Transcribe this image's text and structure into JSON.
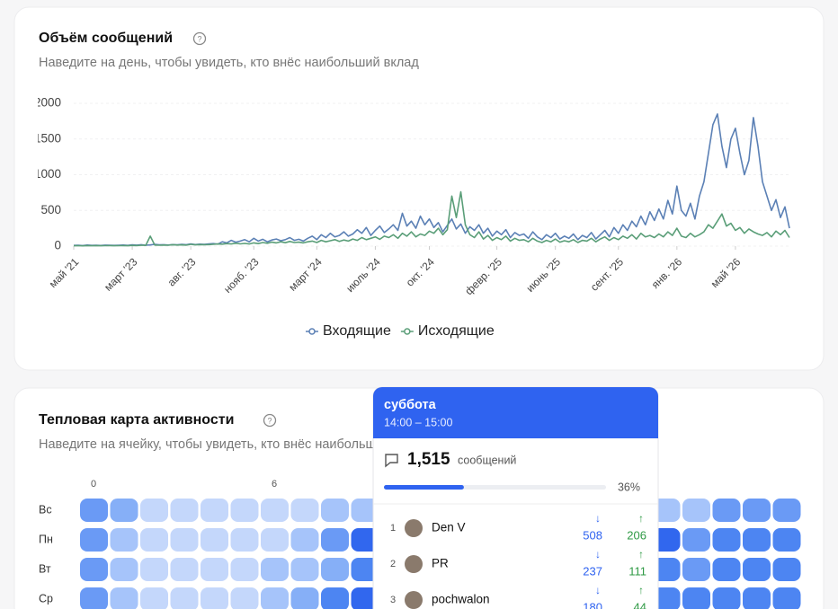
{
  "volume_card": {
    "title": "Объём сообщений",
    "subtitle": "Наведите на день, чтобы увидеть, кто внёс наибольший вклад",
    "chart_data": {
      "type": "line",
      "ylim": [
        0,
        2000
      ],
      "yticks": [
        0,
        500,
        1000,
        1500,
        2000
      ],
      "grid": true,
      "xlim": [
        0,
        159
      ],
      "xticks": [
        {
          "value": 0,
          "label": "май '21"
        },
        {
          "value": 13,
          "label": "март '23"
        },
        {
          "value": 26,
          "label": "авг. '23"
        },
        {
          "value": 40,
          "label": "нояб. '23"
        },
        {
          "value": 54,
          "label": "март '24"
        },
        {
          "value": 67,
          "label": "июль '24"
        },
        {
          "value": 79,
          "label": "окт. '24"
        },
        {
          "value": 94,
          "label": "февр. '25"
        },
        {
          "value": 107,
          "label": "июнь '25"
        },
        {
          "value": 121,
          "label": "сент. '25"
        },
        {
          "value": 134,
          "label": "янв. '26"
        },
        {
          "value": 147,
          "label": "май '26"
        }
      ],
      "series": [
        {
          "name": "Входящие",
          "color": "#5b80b5",
          "values": [
            10,
            12,
            8,
            15,
            10,
            12,
            9,
            14,
            11,
            10,
            12,
            15,
            10,
            18,
            14,
            20,
            12,
            16,
            25,
            18,
            20,
            15,
            22,
            18,
            25,
            20,
            30,
            22,
            28,
            25,
            30,
            35,
            28,
            60,
            45,
            80,
            55,
            70,
            90,
            60,
            110,
            70,
            95,
            60,
            85,
            100,
            75,
            90,
            120,
            80,
            95,
            70,
            110,
            140,
            90,
            160,
            120,
            180,
            130,
            150,
            200,
            140,
            170,
            230,
            180,
            260,
            150,
            220,
            280,
            190,
            240,
            300,
            220,
            460,
            280,
            350,
            250,
            420,
            300,
            380,
            260,
            330,
            200,
            290,
            380,
            240,
            310,
            180,
            270,
            220,
            300,
            180,
            250,
            140,
            210,
            160,
            230,
            120,
            190,
            150,
            170,
            110,
            200,
            130,
            90,
            160,
            120,
            180,
            100,
            140,
            110,
            170,
            90,
            150,
            120,
            190,
            100,
            160,
            220,
            130,
            260,
            180,
            300,
            220,
            350,
            270,
            420,
            300,
            480,
            360,
            520,
            380,
            640,
            450,
            840,
            500,
            420,
            600,
            380,
            700,
            900,
            1300,
            1700,
            1850,
            1400,
            1100,
            1500,
            1650,
            1300,
            1000,
            1200,
            1800,
            1400,
            900,
            700,
            500,
            650,
            400,
            550,
            250
          ]
        },
        {
          "name": "Исходящие",
          "color": "#5a9e78",
          "values": [
            5,
            6,
            4,
            8,
            5,
            7,
            5,
            6,
            8,
            5,
            6,
            8,
            5,
            10,
            8,
            12,
            10,
            140,
            15,
            12,
            15,
            12,
            20,
            15,
            18,
            14,
            25,
            18,
            22,
            20,
            22,
            25,
            30,
            28,
            35,
            30,
            40,
            32,
            38,
            30,
            45,
            35,
            50,
            40,
            55,
            45,
            60,
            48,
            65,
            50,
            55,
            45,
            60,
            70,
            50,
            80,
            60,
            75,
            90,
            65,
            85,
            70,
            100,
            80,
            120,
            90,
            110,
            130,
            95,
            140,
            120,
            160,
            110,
            180,
            140,
            200,
            130,
            170,
            150,
            210,
            180,
            250,
            160,
            230,
            700,
            400,
            760,
            300,
            160,
            120,
            200,
            100,
            150,
            80,
            120,
            90,
            140,
            70,
            110,
            80,
            90,
            60,
            110,
            70,
            50,
            80,
            60,
            100,
            55,
            75,
            60,
            90,
            50,
            80,
            70,
            110,
            60,
            100,
            130,
            80,
            120,
            90,
            140,
            110,
            160,
            100,
            180,
            130,
            150,
            120,
            170,
            130,
            200,
            150,
            250,
            140,
            120,
            180,
            130,
            160,
            200,
            300,
            250,
            350,
            450,
            280,
            320,
            220,
            260,
            180,
            240,
            200,
            170,
            150,
            190,
            130,
            210,
            160,
            220,
            120
          ]
        }
      ]
    }
  },
  "heatmap_card": {
    "title": "Тепловая карта активности",
    "subtitle": "Наведите на ячейку, чтобы увидеть, кто внёс наибольший вклад",
    "chart_data": {
      "type": "heatmap",
      "palette": [
        "#dbe7fd",
        "#c4d7fb",
        "#a6c4fa",
        "#86aff7",
        "#6a9af5",
        "#4d85f2",
        "#3167ee"
      ],
      "column_labels": [
        0,
        6
      ],
      "rows": [
        {
          "name": "Вс",
          "values": [
            4,
            3,
            1,
            1,
            1,
            1,
            1,
            1,
            2,
            2,
            null,
            null,
            null,
            null,
            null,
            null,
            null,
            null,
            null,
            2,
            2,
            4,
            4,
            4
          ]
        },
        {
          "name": "Пн",
          "values": [
            4,
            2,
            1,
            1,
            1,
            1,
            1,
            2,
            4,
            6,
            null,
            null,
            null,
            null,
            null,
            null,
            null,
            null,
            null,
            6,
            4,
            5,
            5,
            5
          ]
        },
        {
          "name": "Вт",
          "values": [
            4,
            2,
            1,
            1,
            1,
            1,
            2,
            2,
            3,
            5,
            null,
            null,
            null,
            null,
            null,
            null,
            null,
            null,
            null,
            5,
            4,
            5,
            5,
            5
          ]
        },
        {
          "name": "Ср",
          "values": [
            4,
            2,
            1,
            1,
            1,
            1,
            2,
            3,
            5,
            6,
            null,
            null,
            null,
            null,
            null,
            null,
            null,
            null,
            null,
            5,
            5,
            5,
            5,
            5
          ]
        }
      ]
    }
  },
  "tooltip": {
    "day": "суббота",
    "time": "14:00 – 15:00",
    "count": 1515,
    "count_label": "1,515",
    "count_unit": "сообщений",
    "share": 36,
    "share_label": "36%",
    "contributors": [
      {
        "rank": 1,
        "name": "Den V",
        "incoming": 508,
        "outgoing": 206
      },
      {
        "rank": 2,
        "name": "PR",
        "incoming": 237,
        "outgoing": 111
      },
      {
        "rank": 3,
        "name": "pochwalon",
        "incoming": 180,
        "outgoing": 44
      }
    ]
  }
}
